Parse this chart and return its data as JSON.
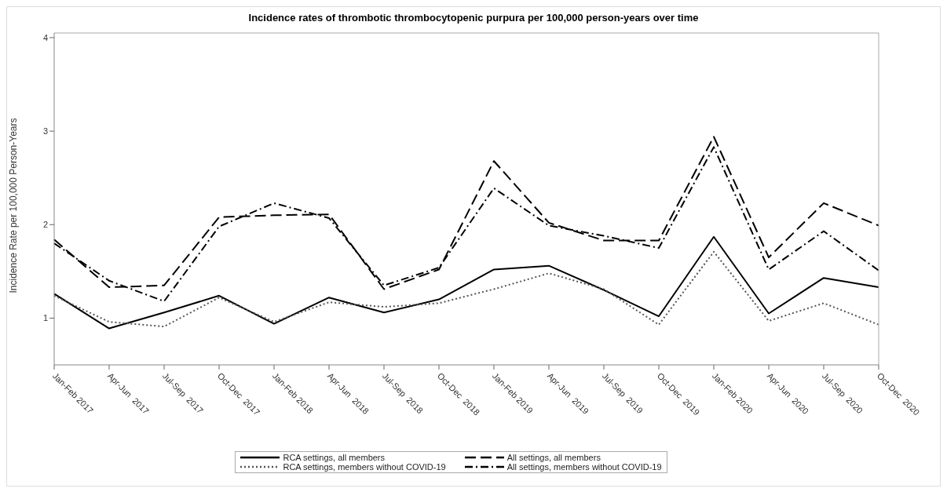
{
  "chart_data": {
    "type": "line",
    "title": "Incidence rates of thrombotic thrombocytopenic purpura per 100,000 person-years over time",
    "ylabel": "Incidence Rate per 100,000 Person-Years",
    "categories": [
      "Jan-Feb 2017",
      "Apr-Jun  2017",
      "Jul-Sep  2017",
      "Oct-Dec  2017",
      "Jan-Feb 2018",
      "Apr-Jun  2018",
      "Jul-Sep  2018",
      "Oct-Dec  2018",
      "Jan-Feb 2019",
      "Apr-Jun  2019",
      "Jul-Sep  2019",
      "Oct-Dec  2019",
      "Jan-Feb 2020",
      "Apr-Jun  2020",
      "Jul-Sep  2020",
      "Oct-Dec  2020"
    ],
    "series": [
      {
        "name": "RCA settings, all members",
        "color": "#000000",
        "line_style": "solid",
        "values": [
          1.26,
          0.89,
          1.06,
          1.24,
          0.94,
          1.22,
          1.06,
          1.2,
          1.52,
          1.56,
          1.3,
          1.02,
          1.87,
          1.05,
          1.43,
          1.33
        ]
      },
      {
        "name": "RCA settings, members without COVID-19",
        "color": "#555555",
        "line_style": "dotted",
        "values": [
          1.24,
          0.96,
          0.91,
          1.22,
          0.96,
          1.17,
          1.12,
          1.16,
          1.31,
          1.48,
          1.31,
          0.93,
          1.71,
          0.97,
          1.16,
          0.93
        ]
      },
      {
        "name": "All settings, all members",
        "color": "#000000",
        "line_style": "dashed",
        "values": [
          1.84,
          1.33,
          1.35,
          2.08,
          2.1,
          2.11,
          1.31,
          1.52,
          2.68,
          2.02,
          1.83,
          1.83,
          2.94,
          1.65,
          2.23,
          1.99
        ]
      },
      {
        "name": "All settings, members without COVID-19",
        "color": "#000000",
        "line_style": "dashdot",
        "values": [
          1.8,
          1.4,
          1.18,
          1.98,
          2.23,
          2.07,
          1.35,
          1.54,
          2.39,
          1.99,
          1.88,
          1.75,
          2.83,
          1.52,
          1.93,
          1.51
        ]
      }
    ],
    "ylim": [
      0.5,
      4.05
    ],
    "yticks": [
      1,
      2,
      3,
      4
    ],
    "grid": false,
    "legend": "bottom",
    "marker": "none"
  }
}
